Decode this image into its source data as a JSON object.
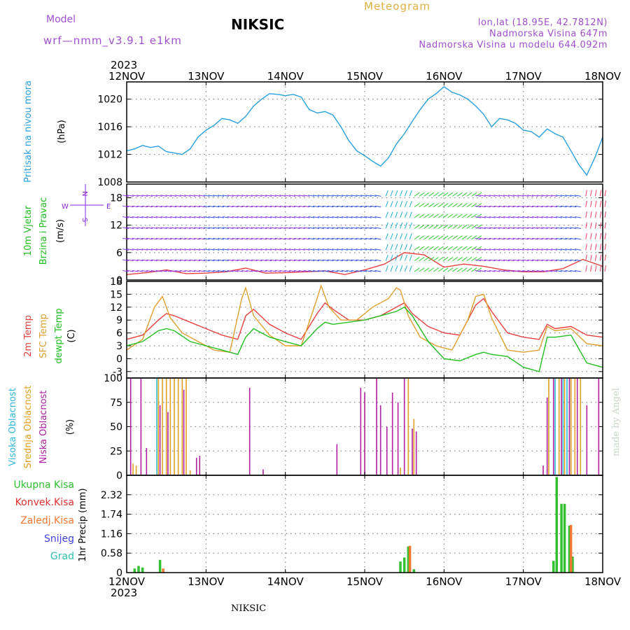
{
  "header": {
    "model_label": "Model",
    "model_name": "wrf—nmm_v3.9.1 e1km",
    "station": "NIKSIC",
    "product": "Meteogram",
    "coords": "lon,lat (18.95E, 42.7812N)",
    "elevation": "Nadmorska Visina 647m",
    "model_elevation": "Nadmorska Visina u modelu 644.092m",
    "year": "2023",
    "footer_station": "NIKSIC",
    "credit": "made by Angel"
  },
  "colors": {
    "pressure": "#2aa0e0",
    "temp2m": "#e84040",
    "sfc": "#e0a030",
    "dewpt": "#20c020",
    "vis": "#30b8d8",
    "mid": "#e0a020",
    "low": "#b020a0",
    "total": "#30c030",
    "conv": "#e03030",
    "frozen": "#f07830",
    "snow": "#4040e0",
    "hail": "#30c0b0",
    "grid": "#888888",
    "wind_purple": "#8a2be2",
    "wind_blue": "#3050e0",
    "wind_cyan": "#20b0d0",
    "wind_green": "#30d030"
  },
  "chart_data": [
    {
      "type": "line",
      "panel": "pressure",
      "ylabels": [
        "Pritisak na nivou mora",
        "(hPa)"
      ],
      "y_ticks": [
        "1008",
        "1012",
        "1016",
        "1020"
      ],
      "ylim": [
        1008,
        1022.5
      ],
      "x_ticks": [
        "12NOV",
        "13NOV",
        "14NOV",
        "15NOV",
        "16NOV",
        "17NOV",
        "18NOV"
      ],
      "grid": true,
      "series": [
        {
          "color_key": "pressure",
          "x": [
            0,
            0.1,
            0.2,
            0.3,
            0.4,
            0.5,
            0.6,
            0.7,
            0.8,
            0.9,
            1.0,
            1.1,
            1.2,
            1.3,
            1.4,
            1.5,
            1.6,
            1.7,
            1.8,
            1.9,
            2.0,
            2.1,
            2.2,
            2.3,
            2.4,
            2.5,
            2.6,
            2.7,
            2.8,
            2.9,
            3.0,
            3.1,
            3.2,
            3.3,
            3.4,
            3.5,
            3.6,
            3.7,
            3.8,
            3.9,
            4.0,
            4.1,
            4.2,
            4.3,
            4.4,
            4.5,
            4.6,
            4.7,
            4.8,
            4.9,
            5.0,
            5.1,
            5.2,
            5.3,
            5.4,
            5.5,
            5.6,
            5.7,
            5.8,
            5.9,
            6.0
          ],
          "y": [
            1012.5,
            1012.8,
            1013.3,
            1013.0,
            1013.2,
            1012.4,
            1012.2,
            1012.0,
            1012.8,
            1014.5,
            1015.5,
            1016.2,
            1017.2,
            1017.0,
            1016.5,
            1017.5,
            1019.0,
            1020.0,
            1020.8,
            1020.7,
            1020.5,
            1020.7,
            1020.3,
            1018.5,
            1018.0,
            1018.2,
            1017.7,
            1016.0,
            1014.0,
            1012.5,
            1011.8,
            1011.0,
            1010.3,
            1011.5,
            1013.5,
            1015.0,
            1016.8,
            1018.5,
            1020.0,
            1020.8,
            1021.8,
            1021.0,
            1020.6,
            1020.0,
            1019.0,
            1017.8,
            1016.0,
            1017.2,
            1017.0,
            1016.5,
            1015.5,
            1015.3,
            1014.5,
            1015.7,
            1015.0,
            1014.5,
            1012.5,
            1010.5,
            1009.0,
            1011.5,
            1014.5
          ]
        }
      ]
    },
    {
      "type": "line",
      "panel": "wind",
      "ylabels": [
        "10m Vjetar",
        "Brzina i Pravac",
        "(m/s)"
      ],
      "compass": [
        "W",
        "E",
        "N",
        "S"
      ],
      "y_ticks": [
        "0",
        "6",
        "12",
        "18"
      ],
      "ylim": [
        0,
        21
      ],
      "x_ticks": [
        "12NOV",
        "13NOV",
        "14NOV",
        "15NOV",
        "16NOV",
        "17NOV",
        "18NOV"
      ],
      "grid": true,
      "series": [
        {
          "name": "speed",
          "color_key": "temp2m",
          "x": [
            0,
            0.25,
            0.5,
            0.75,
            1.0,
            1.25,
            1.5,
            1.75,
            2.0,
            2.25,
            2.5,
            2.75,
            3.0,
            3.25,
            3.5,
            3.75,
            4.0,
            4.25,
            4.5,
            4.75,
            5.0,
            5.25,
            5.5,
            5.75,
            6.0
          ],
          "y": [
            1.2,
            1.6,
            2.2,
            1.4,
            1.5,
            1.8,
            2.6,
            1.5,
            1.6,
            1.8,
            2.0,
            1.2,
            2.2,
            3.5,
            6.0,
            5.5,
            2.8,
            3.5,
            3.0,
            2.2,
            1.8,
            1.8,
            2.5,
            4.5,
            3.0
          ]
        }
      ]
    },
    {
      "type": "line",
      "panel": "temperature",
      "ylabels": [
        "2m Temp",
        "SFC Temp",
        "dewpt Temp",
        "(C)"
      ],
      "y_ticks": [
        "-3",
        "0",
        "3",
        "6",
        "9",
        "12",
        "15",
        "18"
      ],
      "ylim": [
        -4.5,
        18
      ],
      "x_ticks": [
        "12NOV",
        "13NOV",
        "14NOV",
        "15NOV",
        "16NOV",
        "17NOV",
        "18NOV"
      ],
      "grid": true,
      "series": [
        {
          "name": "2m Temp",
          "color_key": "temp2m",
          "x": [
            0,
            0.2,
            0.4,
            0.5,
            0.6,
            0.8,
            1.0,
            1.2,
            1.4,
            1.5,
            1.6,
            1.8,
            2.0,
            2.2,
            2.4,
            2.5,
            2.6,
            2.8,
            3.0,
            3.2,
            3.4,
            3.5,
            3.6,
            3.8,
            4.0,
            4.2,
            4.4,
            4.5,
            4.6,
            4.8,
            5.0,
            5.2,
            5.3,
            5.4,
            5.6,
            5.8,
            6.0
          ],
          "y": [
            4.5,
            5.5,
            9.0,
            10.5,
            10.0,
            8.5,
            7.0,
            5.5,
            4.5,
            10.0,
            11.5,
            8.0,
            6.0,
            4.5,
            10.5,
            13.0,
            11.5,
            9.0,
            9.0,
            10.0,
            12.0,
            13.0,
            10.5,
            7.5,
            6.0,
            5.5,
            12.5,
            14.0,
            11.0,
            6.0,
            5.0,
            4.5,
            8.0,
            7.0,
            7.5,
            5.5,
            5.0
          ]
        },
        {
          "name": "SFC Temp",
          "color_key": "sfc",
          "x": [
            0,
            0.2,
            0.35,
            0.45,
            0.55,
            0.7,
            0.9,
            1.1,
            1.3,
            1.45,
            1.5,
            1.6,
            1.8,
            2.0,
            2.2,
            2.4,
            2.45,
            2.55,
            2.7,
            2.9,
            3.1,
            3.3,
            3.4,
            3.45,
            3.55,
            3.7,
            3.9,
            4.1,
            4.3,
            4.4,
            4.5,
            4.6,
            4.8,
            5.0,
            5.2,
            5.3,
            5.4,
            5.6,
            5.8,
            6.0
          ],
          "y": [
            2.0,
            4.5,
            12.0,
            14.5,
            9.5,
            6.0,
            4.0,
            2.0,
            1.5,
            14.0,
            16.5,
            10.0,
            5.5,
            3.0,
            3.0,
            14.0,
            17.0,
            12.0,
            9.0,
            9.0,
            12.0,
            14.0,
            16.5,
            16.0,
            10.0,
            5.0,
            3.0,
            2.0,
            9.0,
            14.5,
            15.0,
            9.5,
            2.0,
            1.5,
            2.0,
            7.5,
            6.5,
            7.0,
            3.5,
            3.0
          ]
        },
        {
          "name": "dewpt Temp",
          "color_key": "dewpt",
          "x": [
            0,
            0.2,
            0.4,
            0.5,
            0.6,
            0.8,
            1.0,
            1.2,
            1.4,
            1.5,
            1.6,
            1.8,
            2.0,
            2.2,
            2.4,
            2.5,
            2.6,
            2.8,
            3.0,
            3.2,
            3.4,
            3.5,
            3.6,
            3.8,
            4.0,
            4.2,
            4.4,
            4.5,
            4.6,
            4.8,
            5.0,
            5.2,
            5.3,
            5.4,
            5.6,
            5.8,
            6.0
          ],
          "y": [
            3.0,
            4.0,
            6.5,
            7.0,
            6.5,
            4.0,
            3.0,
            2.0,
            1.0,
            5.0,
            7.0,
            5.0,
            4.0,
            3.0,
            7.0,
            8.5,
            8.0,
            8.5,
            9.0,
            10.0,
            11.0,
            12.0,
            10.0,
            4.0,
            0.0,
            -0.5,
            1.0,
            1.5,
            1.0,
            0.5,
            -2.0,
            -3.0,
            5.0,
            5.0,
            5.5,
            -1.0,
            -2.0
          ]
        }
      ]
    },
    {
      "type": "bar",
      "panel": "cloud",
      "ylabels": [
        "Visoka Oblacnost",
        "Srednja Oblacnost",
        "Niska Oblacnost",
        "(%)"
      ],
      "y_ticks": [
        "0",
        "25",
        "50",
        "75",
        "100"
      ],
      "ylim": [
        0,
        100
      ],
      "x_ticks": [
        "12NOV",
        "13NOV",
        "14NOV",
        "15NOV",
        "16NOV",
        "17NOV",
        "18NOV"
      ],
      "grid": true,
      "series": [
        {
          "name": "Visoka",
          "color_key": "vis",
          "x": [
            0.38,
            5.4,
            5.5,
            5.55,
            5.6
          ],
          "y": [
            100,
            100,
            100,
            100,
            100
          ]
        },
        {
          "name": "Srednja",
          "color_key": "mid",
          "x": [
            0.08,
            0.12,
            0.4,
            0.45,
            0.5,
            0.55,
            0.6,
            0.65,
            0.7,
            0.75,
            0.8,
            3.45,
            3.55,
            3.62,
            5.32,
            5.45,
            5.52,
            5.6,
            5.65,
            5.72
          ],
          "y": [
            12,
            10,
            100,
            100,
            100,
            100,
            100,
            100,
            100,
            100,
            5,
            8,
            100,
            58,
            100,
            100,
            100,
            100,
            100,
            100
          ]
        },
        {
          "name": "Niska",
          "color_key": "low",
          "x": [
            0.05,
            0.18,
            0.25,
            0.42,
            0.52,
            0.72,
            0.88,
            0.92,
            1.55,
            1.72,
            2.65,
            2.95,
            3.0,
            3.15,
            3.2,
            3.28,
            3.35,
            3.42,
            3.5,
            3.6,
            3.65,
            5.25,
            5.3,
            5.38,
            5.48,
            5.58,
            5.68,
            5.8,
            5.95
          ],
          "y": [
            100,
            100,
            28,
            72,
            65,
            88,
            18,
            20,
            90,
            6,
            32,
            90,
            85,
            100,
            72,
            50,
            85,
            75,
            100,
            48,
            45,
            10,
            80,
            100,
            100,
            100,
            100,
            72,
            100
          ]
        }
      ]
    },
    {
      "type": "bar",
      "panel": "precip",
      "ylabels": [
        "1hr Precip (mm)"
      ],
      "legend": [
        "Ukupna Kisa",
        "Konvek.Kisa",
        "Zaledj.Kisa",
        "Snijeg",
        "Grad"
      ],
      "y_ticks": [
        "0",
        "0.58",
        "1.16",
        "1.74",
        "2.32"
      ],
      "ylim": [
        0,
        2.9
      ],
      "x_ticks": [
        "12NOV",
        "13NOV",
        "14NOV",
        "15NOV",
        "16NOV",
        "17NOV",
        "18NOV"
      ],
      "grid": true,
      "series": [
        {
          "name": "Ukupna Kisa",
          "color_key": "total",
          "x": [
            0.1,
            0.15,
            0.2,
            0.42,
            3.45,
            3.5,
            3.55,
            3.62,
            5.38,
            5.42,
            5.48,
            5.52,
            5.58,
            5.62
          ],
          "y": [
            0.12,
            0.2,
            0.15,
            0.38,
            0.33,
            0.45,
            0.78,
            0.1,
            0.35,
            2.85,
            2.05,
            2.05,
            1.4,
            0.48
          ]
        },
        {
          "name": "Zaledj.Kisa",
          "color_key": "frozen",
          "x": [
            0.46,
            3.57,
            5.6
          ],
          "y": [
            0.12,
            0.8,
            1.42
          ]
        }
      ]
    }
  ]
}
